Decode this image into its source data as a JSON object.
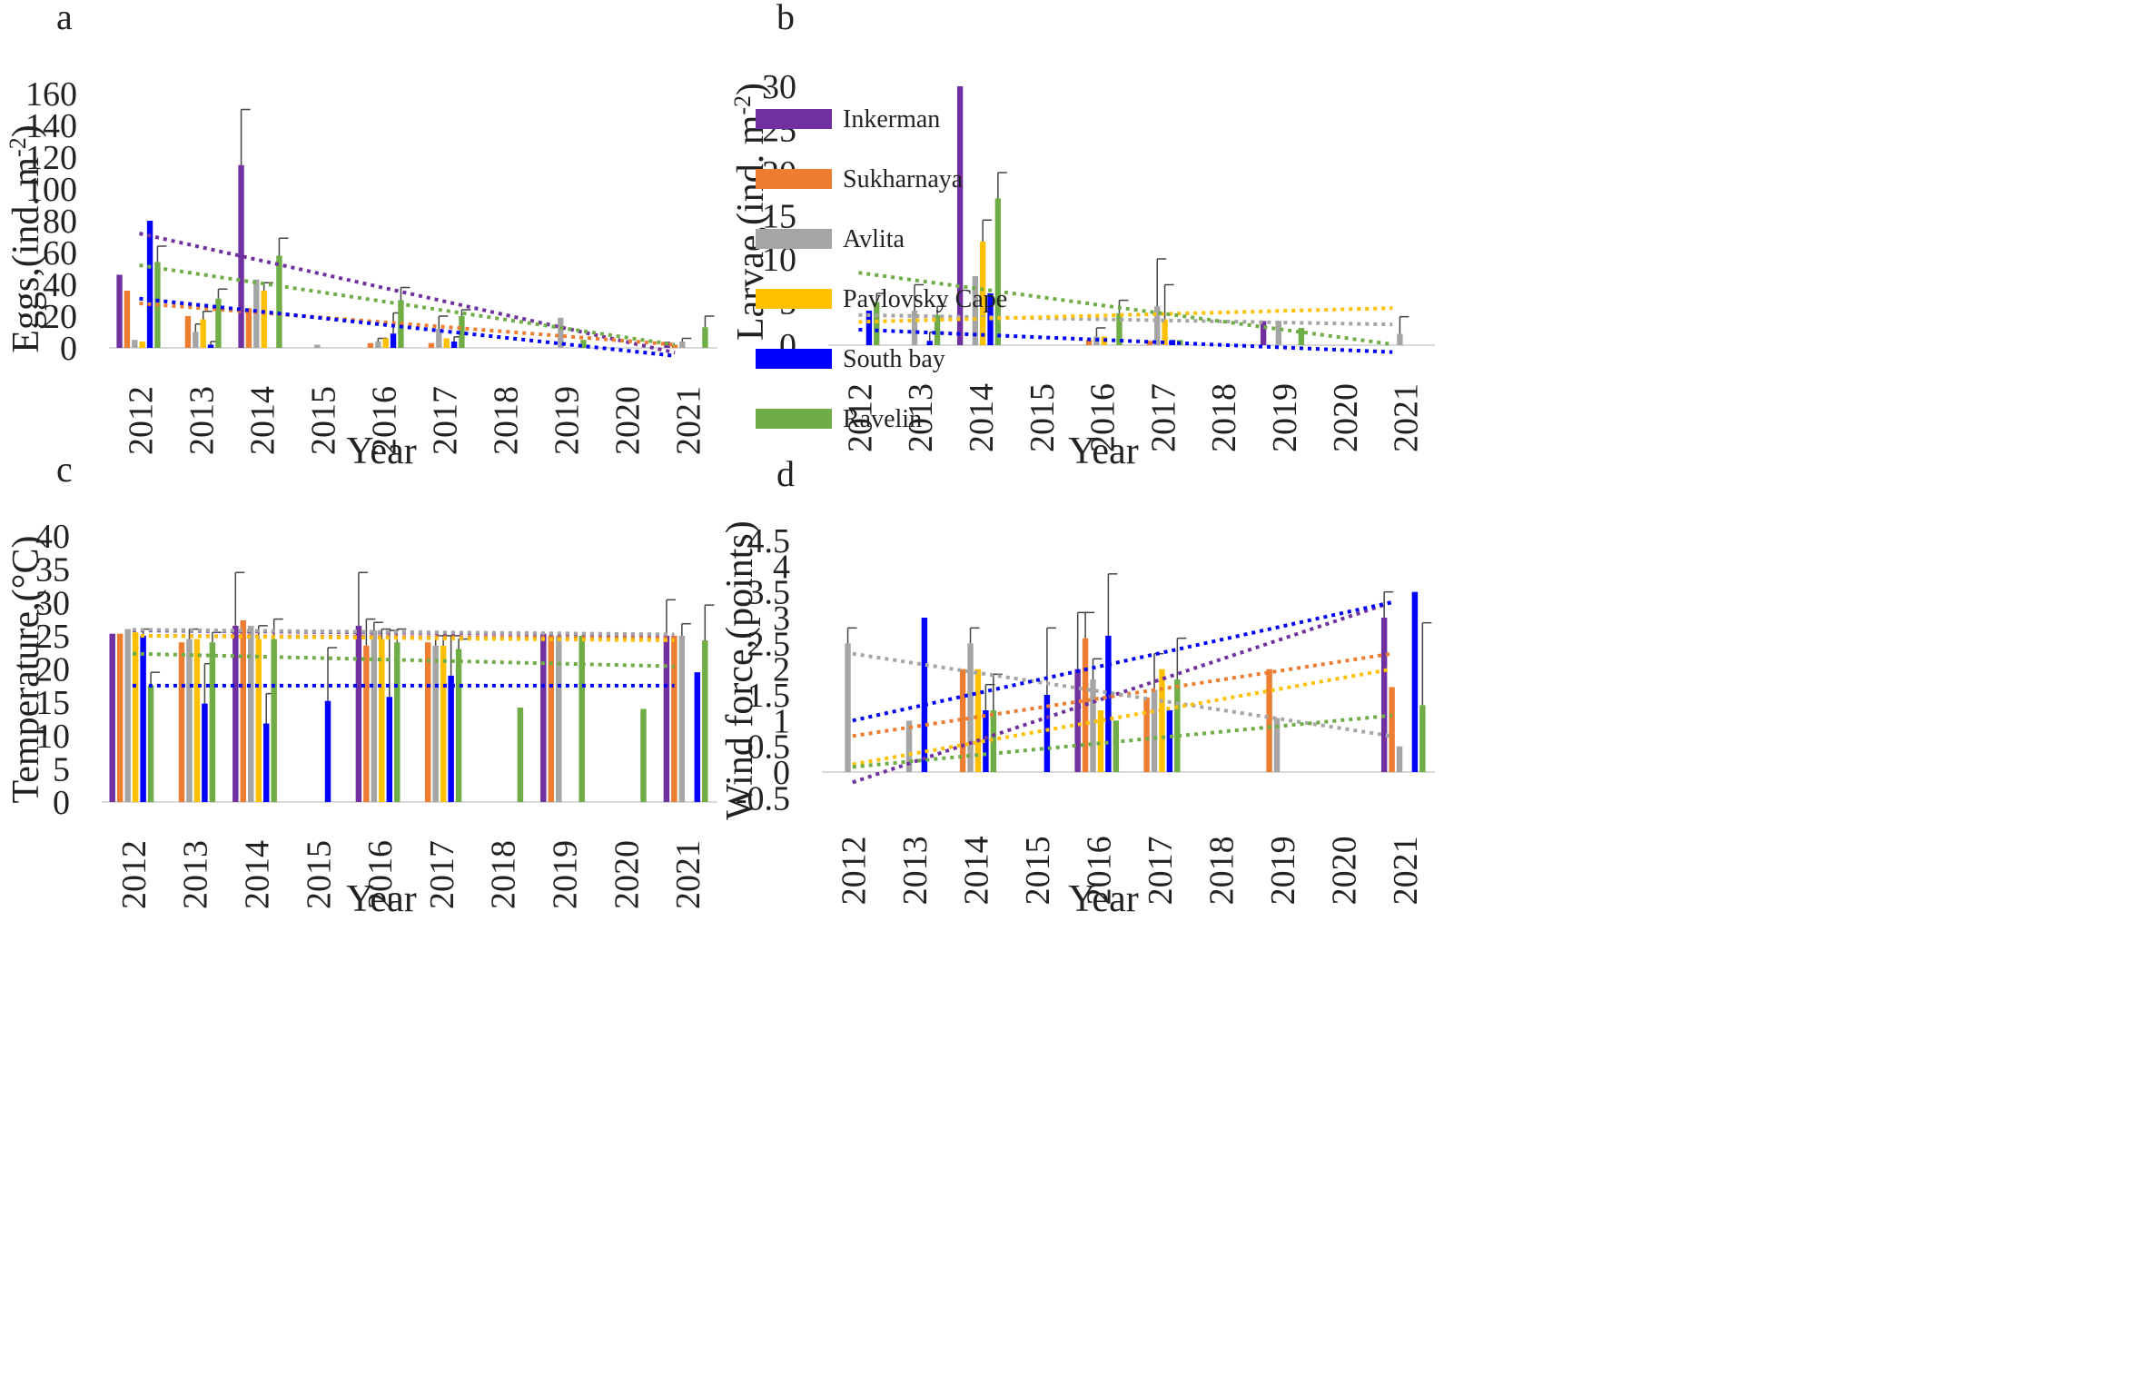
{
  "figure": {
    "colors": {
      "Inkerman": "#7030A0",
      "Sukharnaya": "#ED7D31",
      "Avlita": "#A5A5A5",
      "Pavlovsky Cape": "#FFC000",
      "South bay": "#0000FF",
      "Ravelin": "#70AD47"
    },
    "legend": [
      "Inkerman",
      "Sukharnaya",
      "Avlita",
      "Pavlovsky Cape",
      "South bay",
      "Ravelin"
    ]
  },
  "chart_data": [
    {
      "panel": "a",
      "type": "bar",
      "title": "",
      "xlabel": "Year",
      "ylabel": "Eggs,(ind. m-2)",
      "ylabel_main": "Eggs,(ind. m",
      "ylabel_sup": "-2",
      "ylabel_close": ")",
      "categories": [
        "2012",
        "2013",
        "2014",
        "2015",
        "2016",
        "2017",
        "2018",
        "2019",
        "2020",
        "2021"
      ],
      "yticks": [
        "0",
        "20",
        "40",
        "60",
        "80",
        "100",
        "120",
        "140",
        "160"
      ],
      "ylim": [
        0,
        160
      ],
      "series": [
        {
          "name": "Inkerman",
          "values": [
            46,
            0,
            115,
            0,
            0,
            0,
            0,
            0,
            0,
            4
          ],
          "errors": [
            0,
            0,
            35,
            0,
            0,
            0,
            0,
            0,
            0,
            0
          ],
          "trend": [
            72,
            -3
          ]
        },
        {
          "name": "Sukharnaya",
          "values": [
            36,
            20,
            25,
            0,
            3,
            3,
            0,
            0,
            0,
            2
          ],
          "errors": [
            0,
            0,
            0,
            0,
            0,
            0,
            0,
            0,
            0,
            0
          ],
          "trend": [
            28,
            2
          ]
        },
        {
          "name": "Avlita",
          "values": [
            5,
            10,
            43,
            2,
            4,
            12,
            0,
            19,
            0,
            4
          ],
          "errors": [
            0,
            5,
            0,
            0,
            2,
            8,
            0,
            0,
            0,
            2
          ],
          "trend": [
            null,
            null
          ]
        },
        {
          "name": "Pavlovsky Cape",
          "values": [
            4,
            18,
            36,
            0,
            6,
            6,
            0,
            0,
            0,
            0
          ],
          "errors": [
            0,
            5,
            5,
            0,
            0,
            0,
            0,
            0,
            0,
            0
          ],
          "trend": [
            null,
            null
          ]
        },
        {
          "name": "South bay",
          "values": [
            80,
            2,
            0,
            0,
            9,
            4,
            0,
            0,
            0,
            0
          ],
          "errors": [
            0,
            2,
            0,
            0,
            13,
            3,
            0,
            0,
            0,
            0
          ],
          "trend": [
            31,
            -5
          ]
        },
        {
          "name": "Ravelin",
          "values": [
            54,
            31,
            58,
            0,
            30,
            20,
            0,
            5,
            0,
            13
          ],
          "errors": [
            10,
            6,
            11,
            0,
            8,
            4,
            0,
            0,
            0,
            7
          ],
          "trend": [
            52,
            2
          ]
        }
      ]
    },
    {
      "panel": "b",
      "type": "bar",
      "title": "",
      "xlabel": "Year",
      "ylabel": "Larvae,(ind. m-2)",
      "ylabel_main": "Larvae,(ind. m",
      "ylabel_sup": "-2",
      "ylabel_close": ")",
      "categories": [
        "2012",
        "2013",
        "2014",
        "2015",
        "2016",
        "2017",
        "2018",
        "2019",
        "2020",
        "2021"
      ],
      "yticks": [
        "0",
        "5",
        "10",
        "15",
        "20",
        "25",
        "30"
      ],
      "ylim": [
        0,
        30
      ],
      "series": [
        {
          "name": "Inkerman",
          "values": [
            0,
            0,
            30,
            0,
            0,
            0,
            0,
            2.8,
            0,
            0
          ],
          "errors": [
            0,
            0,
            0,
            0,
            0,
            0,
            0,
            0,
            0,
            0
          ],
          "trend": [
            null,
            null
          ]
        },
        {
          "name": "Sukharnaya",
          "values": [
            0,
            0,
            0,
            0,
            0.6,
            0.5,
            0,
            0,
            0,
            0
          ],
          "errors": [
            0,
            0,
            0,
            0,
            0,
            0,
            0,
            0,
            0,
            0
          ],
          "trend": [
            null,
            null
          ]
        },
        {
          "name": "Avlita",
          "values": [
            0,
            4,
            8,
            0,
            1,
            4.5,
            0,
            2.8,
            0,
            1.3
          ],
          "errors": [
            0,
            3,
            0,
            0,
            1,
            5.5,
            0,
            0,
            0,
            2
          ],
          "trend": [
            3.5,
            2.4
          ]
        },
        {
          "name": "Pavlovsky Cape",
          "values": [
            0,
            0,
            12,
            0,
            1,
            3,
            0,
            0,
            0,
            0
          ],
          "errors": [
            0,
            0,
            2.5,
            0,
            0,
            4,
            0,
            0,
            0,
            0
          ],
          "trend": [
            2.7,
            4.3
          ]
        },
        {
          "name": "South bay",
          "values": [
            4,
            0.5,
            6,
            0,
            0,
            0.6,
            0,
            0,
            0,
            0
          ],
          "errors": [
            0,
            1,
            0,
            0,
            0,
            0,
            0,
            0,
            0,
            0
          ],
          "trend": [
            1.8,
            -0.8
          ]
        },
        {
          "name": "Ravelin",
          "values": [
            5,
            3.5,
            17,
            0,
            3.7,
            0.6,
            0,
            2,
            0,
            0
          ],
          "errors": [
            1,
            1,
            3,
            0,
            1.5,
            0,
            0,
            0,
            0,
            0
          ],
          "trend": [
            8.4,
            0.1
          ]
        }
      ]
    },
    {
      "panel": "c",
      "type": "bar",
      "title": "",
      "xlabel": "Year",
      "ylabel": "Temperature,(°C)",
      "ylabel_main": "Temperature,(°C)",
      "ylabel_sup": "",
      "ylabel_close": "",
      "categories": [
        "2012",
        "2013",
        "2014",
        "2015",
        "2016",
        "2017",
        "2018",
        "2019",
        "2020",
        "2021"
      ],
      "yticks": [
        "0",
        "5",
        "10",
        "15",
        "20",
        "25",
        "30",
        "35",
        "40"
      ],
      "ylim": [
        0,
        40
      ],
      "series": [
        {
          "name": "Inkerman",
          "values": [
            25.3,
            0,
            26.5,
            0,
            26.5,
            0,
            0,
            25.3,
            0,
            25
          ],
          "errors": [
            0,
            0,
            8,
            0,
            8,
            0,
            0,
            0,
            0,
            5.4
          ],
          "trend": [
            25.8,
            25.1
          ]
        },
        {
          "name": "Sukharnaya",
          "values": [
            25.3,
            24,
            27.3,
            0,
            23.5,
            24,
            0,
            25,
            0,
            25
          ],
          "errors": [
            0,
            0,
            0,
            0,
            4,
            0,
            0,
            0,
            0,
            0
          ],
          "trend": [
            25,
            24.6
          ]
        },
        {
          "name": "Avlita",
          "values": [
            26,
            24.5,
            26.5,
            0,
            25.8,
            23.5,
            0,
            25,
            0,
            25
          ],
          "errors": [
            0,
            1.5,
            0,
            0,
            1.2,
            1.5,
            0,
            0,
            0,
            1.8
          ],
          "trend": [
            25.9,
            25.2
          ]
        },
        {
          "name": "Pavlovsky Cape",
          "values": [
            25.5,
            24.5,
            24.5,
            0,
            24.5,
            23.5,
            0,
            0,
            0,
            0
          ],
          "errors": [
            0,
            0,
            2,
            0,
            1.5,
            1.5,
            0,
            0,
            0,
            0
          ],
          "trend": [
            25,
            24.3
          ]
        },
        {
          "name": "South bay",
          "values": [
            25,
            14.8,
            11.8,
            15.2,
            15.8,
            19,
            0,
            0,
            0,
            19.5
          ],
          "errors": [
            1,
            6,
            4.5,
            8,
            10,
            6,
            0,
            0,
            0,
            0
          ],
          "trend": [
            17.5,
            17.5
          ]
        },
        {
          "name": "Ravelin",
          "values": [
            17.5,
            24,
            24.5,
            0,
            24,
            23,
            14.2,
            25,
            14,
            24.3
          ],
          "errors": [
            2,
            1.5,
            3,
            0,
            2,
            1.5,
            0,
            0,
            0,
            5.3
          ],
          "trend": [
            22.3,
            20.4
          ]
        }
      ]
    },
    {
      "panel": "d",
      "type": "bar",
      "title": "",
      "xlabel": "Year",
      "ylabel": "Wind force,(points)",
      "ylabel_main": "Wind force,(points)",
      "ylabel_sup": "",
      "ylabel_close": "",
      "categories": [
        "2012",
        "2013",
        "2014",
        "2015",
        "2016",
        "2017",
        "2018",
        "2019",
        "2020",
        "2021"
      ],
      "yticks": [
        "-0.5",
        "0",
        "0.5",
        "1",
        "1.5",
        "2",
        "2.5",
        "3",
        "3.5",
        "4",
        "4.5"
      ],
      "ylim": [
        -0.5,
        4.5
      ],
      "series": [
        {
          "name": "Inkerman",
          "values": [
            0,
            0,
            0,
            0,
            2,
            0,
            0,
            0,
            0,
            3
          ],
          "errors": [
            0,
            0,
            0,
            0,
            1.1,
            0,
            0,
            0,
            0,
            0.5
          ],
          "trend": [
            -0.2,
            3.3
          ]
        },
        {
          "name": "Sukharnaya",
          "values": [
            0,
            0,
            2,
            0,
            2.6,
            1.45,
            0,
            2,
            0,
            1.65
          ],
          "errors": [
            0,
            0,
            0,
            0,
            0.5,
            0,
            0,
            0,
            0,
            0
          ],
          "trend": [
            0.7,
            2.3
          ]
        },
        {
          "name": "Avlita",
          "values": [
            2.5,
            1,
            2.5,
            0,
            1.8,
            1.6,
            0,
            1.05,
            0,
            0.5
          ],
          "errors": [
            0.3,
            0,
            0.3,
            0,
            0.4,
            0.7,
            0,
            0,
            0,
            0
          ],
          "trend": [
            2.3,
            0.7
          ]
        },
        {
          "name": "Pavlovsky Cape",
          "values": [
            0,
            0,
            2,
            0,
            1.2,
            2,
            0,
            0,
            0,
            0
          ],
          "errors": [
            0,
            0,
            0,
            0,
            0,
            0,
            0,
            0,
            0,
            0
          ],
          "trend": [
            0.15,
            2
          ]
        },
        {
          "name": "South bay",
          "values": [
            0,
            3,
            1.2,
            1.5,
            2.65,
            1.2,
            0,
            0,
            0,
            3.5
          ],
          "errors": [
            0,
            0,
            0.5,
            1.3,
            1.2,
            0,
            0,
            0,
            0,
            0
          ],
          "trend": [
            1,
            3.3
          ]
        },
        {
          "name": "Ravelin",
          "values": [
            0,
            0,
            1.2,
            0,
            1,
            1.8,
            0,
            0,
            0,
            1.3
          ],
          "errors": [
            0,
            0,
            0.7,
            0,
            0,
            0.8,
            0,
            0,
            0,
            1.6
          ],
          "trend": [
            0.1,
            1.1
          ]
        }
      ]
    }
  ]
}
